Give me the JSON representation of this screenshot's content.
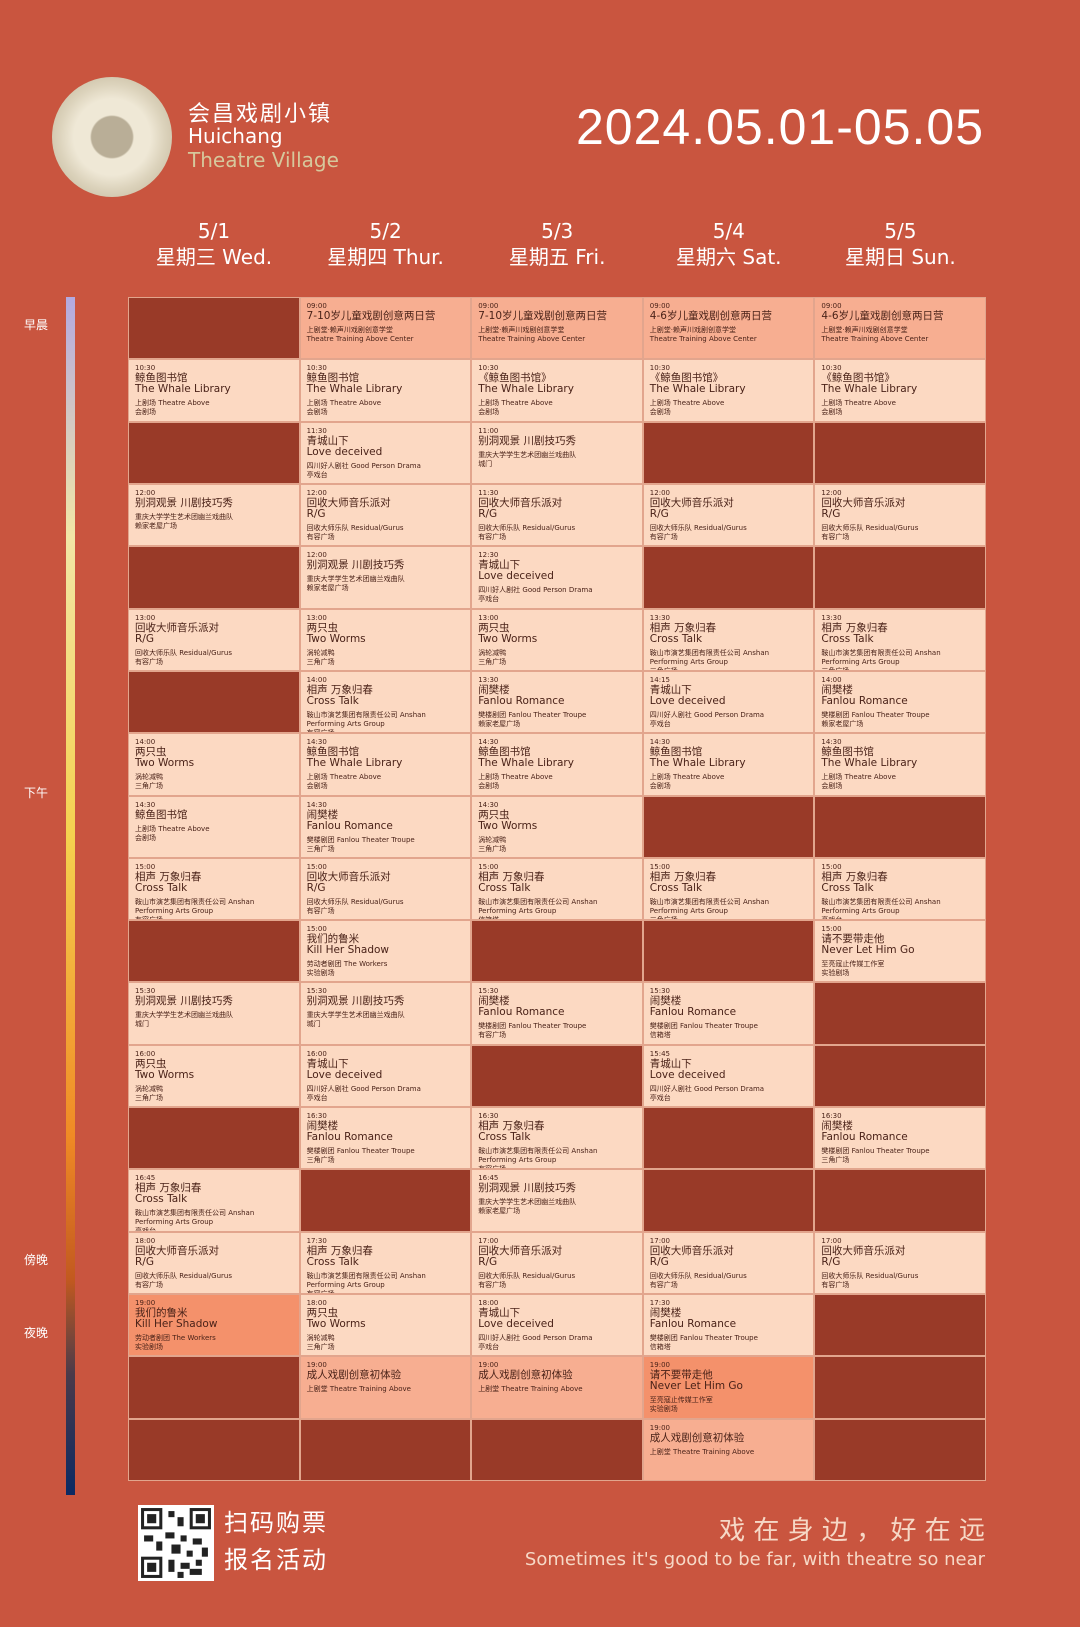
{
  "header": {
    "brand_cn": "会昌戏剧小镇",
    "brand_en1": "Huichang",
    "brand_en2": "Theatre Village",
    "dates": "2024.05.01-05.05"
  },
  "periods": [
    "早晨",
    "下午",
    "傍晚",
    "夜晚"
  ],
  "days": [
    {
      "date": "5/1",
      "weekday": "星期三 Wed.",
      "cells": [
        null,
        {
          "time": "10:30",
          "title": "鲸鱼图书馆",
          "subtitle": "The Whale Library",
          "company": "上剧场 Theatre Above",
          "venue": "会剧场"
        },
        null,
        {
          "time": "12:00",
          "title": "别洞观景 川剧技巧秀",
          "company": "重庆大学学生艺术团幽兰戏曲队",
          "venue": "赖家老屋广场"
        },
        null,
        {
          "time": "13:00",
          "title": "回收大师音乐派对",
          "subtitle": "R/G",
          "company": "回收大师乐队 Residual/Gurus",
          "venue": "有容广场"
        },
        null,
        {
          "time": "14:00",
          "title": "两只虫",
          "subtitle": "Two Worms",
          "company": "涡轮减鸭",
          "venue": "三角广场"
        },
        {
          "time": "14:30",
          "title": "鲸鱼图书馆",
          "company": "上剧场 Theatre Above",
          "venue": "会剧场"
        },
        {
          "time": "15:00",
          "title": "相声 万象归春",
          "subtitle": "Cross Talk",
          "company": "鞍山市演艺集团有限责任公司 Anshan Performing Arts Group",
          "venue": "有容广场"
        },
        null,
        {
          "time": "15:30",
          "title": "别洞观景 川剧技巧秀",
          "company": "重庆大学学生艺术团幽兰戏曲队",
          "venue": "城门"
        },
        {
          "time": "16:00",
          "title": "两只虫",
          "subtitle": "Two Worms",
          "company": "涡轮减鸭",
          "venue": "三角广场"
        },
        null,
        {
          "time": "16:45",
          "title": "相声 万象归春",
          "subtitle": "Cross Talk",
          "company": "鞍山市演艺集团有限责任公司 Anshan Performing Arts Group",
          "venue": "亭戏台"
        },
        {
          "time": "18:00",
          "title": "回收大师音乐派对",
          "subtitle": "R/G",
          "company": "回收大师乐队 Residual/Gurus",
          "venue": "有容广场"
        },
        {
          "time": "19:00",
          "title": "我们的鲁米",
          "subtitle": "Kill Her Shadow",
          "company": "劳动者剧团 The Workers",
          "venue": "实验剧场",
          "tone": "orange"
        },
        null,
        null
      ]
    },
    {
      "date": "5/2",
      "weekday": "星期四 Thur.",
      "cells": [
        {
          "time": "09:00",
          "title": "7-10岁儿童戏剧创意两日营",
          "company": "上剧堂·赖声川戏剧创意学堂",
          "company_en": "Theatre Training Above Center",
          "tone": "pink"
        },
        {
          "time": "10:30",
          "title": "鲸鱼图书馆",
          "subtitle": "The Whale Library",
          "company": "上剧场 Theatre Above",
          "venue": "会剧场"
        },
        {
          "time": "11:30",
          "title": "青城山下",
          "subtitle": "Love deceived",
          "company": "四川好人剧社 Good Person Drama",
          "venue": "亭戏台"
        },
        {
          "time": "12:00",
          "title": "回收大师音乐派对",
          "subtitle": "R/G",
          "company": "回收大师乐队 Residual/Gurus",
          "venue": "有容广场"
        },
        {
          "time": "12:00",
          "title": "别洞观景 川剧技巧秀",
          "company": "重庆大学学生艺术团幽兰戏曲队",
          "venue": "赖家老屋广场"
        },
        {
          "time": "13:00",
          "title": "两只虫",
          "subtitle": "Two Worms",
          "company": "涡轮减鸭",
          "venue": "三角广场"
        },
        {
          "time": "14:00",
          "title": "相声 万象归春",
          "subtitle": "Cross Talk",
          "company": "鞍山市演艺集团有限责任公司 Anshan Performing Arts Group",
          "venue": "有容广场"
        },
        {
          "time": "14:30",
          "title": "鲸鱼图书馆",
          "subtitle": "The Whale Library",
          "company": "上剧场 Theatre Above",
          "venue": "会剧场"
        },
        {
          "time": "14:30",
          "title": "闹樊楼",
          "subtitle": "Fanlou Romance",
          "company": "樊楼剧团 Fanlou Theater Troupe",
          "venue": "三角广场"
        },
        {
          "time": "15:00",
          "title": "回收大师音乐派对",
          "subtitle": "R/G",
          "company": "回收大师乐队 Residual/Gurus",
          "venue": "有容广场"
        },
        {
          "time": "15:00",
          "title": "我们的鲁米",
          "subtitle": "Kill Her Shadow",
          "company": "劳动者剧团 The Workers",
          "venue": "实验剧场"
        },
        {
          "time": "15:30",
          "title": "别洞观景 川剧技巧秀",
          "company": "重庆大学学生艺术团幽兰戏曲队",
          "venue": "城门"
        },
        {
          "time": "16:00",
          "title": "青城山下",
          "subtitle": "Love deceived",
          "company": "四川好人剧社 Good Person Drama",
          "venue": "亭戏台"
        },
        {
          "time": "16:30",
          "title": "闹樊楼",
          "subtitle": "Fanlou Romance",
          "company": "樊楼剧团 Fanlou Theater Troupe",
          "venue": "三角广场"
        },
        null,
        {
          "time": "17:30",
          "title": "相声 万象归春",
          "subtitle": "Cross Talk",
          "company": "鞍山市演艺集团有限责任公司 Anshan Performing Arts Group",
          "venue": "有容广场"
        },
        {
          "time": "18:00",
          "title": "两只虫",
          "subtitle": "Two Worms",
          "company": "涡轮减鸭",
          "venue": "三角广场"
        },
        {
          "time": "19:00",
          "title": "成人戏剧创意初体验",
          "company": "上剧堂 Theatre Training Above",
          "tone": "pink"
        },
        null
      ]
    },
    {
      "date": "5/3",
      "weekday": "星期五 Fri.",
      "cells": [
        {
          "time": "09:00",
          "title": "7-10岁儿童戏剧创意两日营",
          "company": "上剧堂·赖声川戏剧创意学堂",
          "company_en": "Theatre Training Above Center",
          "tone": "pink"
        },
        {
          "time": "10:30",
          "title": "《鲸鱼图书馆》",
          "subtitle": "The Whale Library",
          "company": "上剧场 Theatre Above",
          "venue": "会剧场"
        },
        {
          "time": "11:00",
          "title": "别洞观景 川剧技巧秀",
          "company": "重庆大学学生艺术团幽兰戏曲队",
          "venue": "城门"
        },
        {
          "time": "11:30",
          "title": "回收大师音乐派对",
          "subtitle": "R/G",
          "company": "回收大师乐队 Residual/Gurus",
          "venue": "有容广场"
        },
        {
          "time": "12:30",
          "title": "青城山下",
          "subtitle": "Love deceived",
          "company": "四川好人剧社 Good Person Drama",
          "venue": "亭戏台"
        },
        {
          "time": "13:00",
          "title": "两只虫",
          "subtitle": "Two Worms",
          "company": "涡轮减鸭",
          "venue": "三角广场"
        },
        {
          "time": "13:30",
          "title": "闹樊楼",
          "subtitle": "Fanlou Romance",
          "company": "樊楼剧团 Fanlou Theater Troupe",
          "venue": "赖家老屋广场"
        },
        {
          "time": "14:30",
          "title": "鲸鱼图书馆",
          "subtitle": "The Whale Library",
          "company": "上剧场 Theatre Above",
          "venue": "会剧场"
        },
        {
          "time": "14:30",
          "title": "两只虫",
          "subtitle": "Two Worms",
          "company": "涡轮减鸭",
          "venue": "三角广场"
        },
        {
          "time": "15:00",
          "title": "相声 万象归春",
          "subtitle": "Cross Talk",
          "company": "鞍山市演艺集团有限责任公司 Anshan Performing Arts Group",
          "venue": "信箱塔"
        },
        null,
        {
          "time": "15:30",
          "title": "闹樊楼",
          "subtitle": "Fanlou Romance",
          "company": "樊楼剧团 Fanlou Theater Troupe",
          "venue": "有容广场"
        },
        null,
        {
          "time": "16:30",
          "title": "相声 万象归春",
          "subtitle": "Cross Talk",
          "company": "鞍山市演艺集团有限责任公司 Anshan Performing Arts Group",
          "venue": "有容广场"
        },
        {
          "time": "16:45",
          "title": "别洞观景 川剧技巧秀",
          "company": "重庆大学学生艺术团幽兰戏曲队",
          "venue": "赖家老屋广场"
        },
        {
          "time": "17:00",
          "title": "回收大师音乐派对",
          "subtitle": "R/G",
          "company": "回收大师乐队 Residual/Gurus",
          "venue": "有容广场"
        },
        {
          "time": "18:00",
          "title": "青城山下",
          "subtitle": "Love deceived",
          "company": "四川好人剧社 Good Person Drama",
          "venue": "亭戏台"
        },
        {
          "time": "19:00",
          "title": "成人戏剧创意初体验",
          "company": "上剧堂 Theatre Training Above",
          "tone": "pink"
        },
        null
      ]
    },
    {
      "date": "5/4",
      "weekday": "星期六 Sat.",
      "cells": [
        {
          "time": "09:00",
          "title": "4-6岁儿童戏剧创意两日营",
          "company": "上剧堂·赖声川戏剧创意学堂",
          "company_en": "Theatre Training Above Center",
          "tone": "pink"
        },
        {
          "time": "10:30",
          "title": "《鲸鱼图书馆》",
          "subtitle": "The Whale Library",
          "company": "上剧场 Theatre Above",
          "venue": "会剧场"
        },
        null,
        {
          "time": "12:00",
          "title": "回收大师音乐派对",
          "subtitle": "R/G",
          "company": "回收大师乐队 Residual/Gurus",
          "venue": "有容广场"
        },
        null,
        {
          "time": "13:30",
          "title": "相声 万象归春",
          "subtitle": "Cross Talk",
          "company": "鞍山市演艺集团有限责任公司 Anshan Performing Arts Group",
          "venue": "三角广场"
        },
        {
          "time": "14:15",
          "title": "青城山下",
          "subtitle": "Love deceived",
          "company": "四川好人剧社 Good Person Drama",
          "venue": "亭戏台"
        },
        {
          "time": "14:30",
          "title": "鲸鱼图书馆",
          "subtitle": "The Whale Library",
          "company": "上剧场 Theatre Above",
          "venue": "会剧场"
        },
        null,
        {
          "time": "15:00",
          "title": "相声 万象归春",
          "subtitle": "Cross Talk",
          "company": "鞍山市演艺集团有限责任公司 Anshan Performing Arts Group",
          "venue": "三角广场"
        },
        null,
        {
          "time": "15:30",
          "title": "闹樊楼",
          "subtitle": "Fanlou Romance",
          "company": "樊楼剧团 Fanlou Theater Troupe",
          "venue": "信箱塔"
        },
        {
          "time": "15:45",
          "title": "青城山下",
          "subtitle": "Love deceived",
          "company": "四川好人剧社 Good Person Drama",
          "venue": "亭戏台"
        },
        null,
        null,
        {
          "time": "17:00",
          "title": "回收大师音乐派对",
          "subtitle": "R/G",
          "company": "回收大师乐队 Residual/Gurus",
          "venue": "有容广场"
        },
        {
          "time": "17:30",
          "title": "闹樊楼",
          "subtitle": "Fanlou Romance",
          "company": "樊楼剧团 Fanlou Theater Troupe",
          "venue": "信箱塔"
        },
        {
          "time": "19:00",
          "title": "请不要带走他",
          "subtitle": "Never Let Him Go",
          "company": "至亮寇止传媒工作室",
          "venue": "实验剧场",
          "tone": "orange"
        },
        {
          "time": "19:00",
          "title": "成人戏剧创意初体验",
          "company": "上剧堂 Theatre Training Above",
          "tone": "pink"
        }
      ]
    },
    {
      "date": "5/5",
      "weekday": "星期日 Sun.",
      "cells": [
        {
          "time": "09:00",
          "title": "4-6岁儿童戏剧创意两日营",
          "company": "上剧堂·赖声川戏剧创意学堂",
          "company_en": "Theatre Training Above Center",
          "tone": "pink"
        },
        {
          "time": "10:30",
          "title": "《鲸鱼图书馆》",
          "subtitle": "The Whale Library",
          "company": "上剧场 Theatre Above",
          "venue": "会剧场"
        },
        null,
        {
          "time": "12:00",
          "title": "回收大师音乐派对",
          "subtitle": "R/G",
          "company": "回收大师乐队 Residual/Gurus",
          "venue": "有容广场"
        },
        null,
        {
          "time": "13:30",
          "title": "相声 万象归春",
          "subtitle": "Cross Talk",
          "company": "鞍山市演艺集团有限责任公司 Anshan Performing Arts Group",
          "venue": "三角广场"
        },
        {
          "time": "14:00",
          "title": "闹樊楼",
          "subtitle": "Fanlou Romance",
          "company": "樊楼剧团 Fanlou Theater Troupe",
          "venue": "赖家老屋广场"
        },
        {
          "time": "14:30",
          "title": "鲸鱼图书馆",
          "subtitle": "The Whale Library",
          "company": "上剧场 Theatre Above",
          "venue": "会剧场"
        },
        null,
        {
          "time": "15:00",
          "title": "相声 万象归春",
          "subtitle": "Cross Talk",
          "company": "鞍山市演艺集团有限责任公司 Anshan Performing Arts Group",
          "venue": "亭戏台"
        },
        {
          "time": "15:00",
          "title": "请不要带走他",
          "subtitle": "Never Let Him Go",
          "company": "至亮寇止传媒工作室",
          "venue": "实验剧场"
        },
        null,
        null,
        {
          "time": "16:30",
          "title": "闹樊楼",
          "subtitle": "Fanlou Romance",
          "company": "樊楼剧团 Fanlou Theater Troupe",
          "venue": "三角广场"
        },
        null,
        {
          "time": "17:00",
          "title": "回收大师音乐派对",
          "subtitle": "R/G",
          "company": "回收大师乐队 Residual/Gurus",
          "venue": "有容广场"
        },
        null,
        null,
        null
      ]
    }
  ],
  "footer": {
    "qr_line1": "扫码购票",
    "qr_line2": "报名活动",
    "slogan_cn": "戏 在 身 边 ， 好 在 远",
    "slogan_en": "Sometimes it's good to be far, with theatre so near"
  }
}
